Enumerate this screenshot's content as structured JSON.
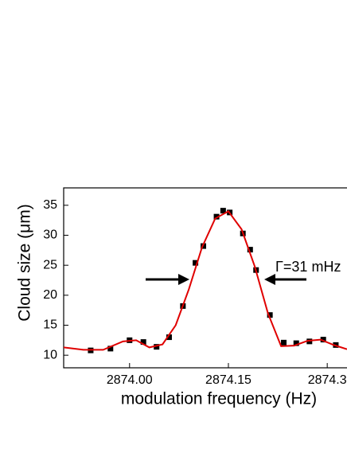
{
  "chart_data": {
    "type": "scatter",
    "x_label": "modulation frequency (Hz)",
    "y_label": "Cloud size (μm)",
    "annotation": "Γ=31 mHz",
    "xlim": [
      2873.9,
      2874.33
    ],
    "ylim": [
      7.9,
      37.9
    ],
    "xticks": [
      {
        "value": 2874.0,
        "label": "2874.00"
      },
      {
        "value": 2874.15,
        "label": "2874.15"
      },
      {
        "value": 2874.3,
        "label": "2874.3"
      }
    ],
    "yticks": [
      10,
      15,
      20,
      25,
      30,
      35
    ],
    "series": [
      {
        "color": "#000000",
        "x": [
          2873.941,
          2873.971,
          2874.0,
          2874.021,
          2874.041,
          2874.06,
          2874.081,
          2874.1,
          2874.112,
          2874.132,
          2874.142,
          2874.152,
          2874.172,
          2874.183,
          2874.192,
          2874.213,
          2874.234,
          2874.253,
          2874.273,
          2874.294,
          2874.313
        ],
        "values": [
          10.8,
          11.1,
          12.5,
          12.2,
          11.4,
          13.0,
          18.2,
          25.4,
          28.2,
          33.1,
          34.1,
          33.8,
          30.3,
          27.6,
          24.2,
          16.7,
          12.1,
          12.0,
          12.3,
          12.6,
          11.7
        ]
      },
      {
        "type": "line",
        "color": "#e00000",
        "x": [
          2873.9,
          2873.93,
          2873.96,
          2873.99,
          2874.01,
          2874.03,
          2874.05,
          2874.07,
          2874.09,
          2874.11,
          2874.13,
          2874.15,
          2874.17,
          2874.19,
          2874.21,
          2874.23,
          2874.25,
          2874.27,
          2874.29,
          2874.31,
          2874.33
        ],
        "values": [
          11.3,
          10.9,
          10.9,
          12.3,
          12.5,
          11.3,
          11.8,
          15.0,
          21.0,
          28.0,
          32.8,
          34.0,
          31.0,
          24.8,
          17.0,
          11.5,
          11.6,
          12.4,
          12.6,
          11.7,
          11.0
        ]
      }
    ]
  }
}
